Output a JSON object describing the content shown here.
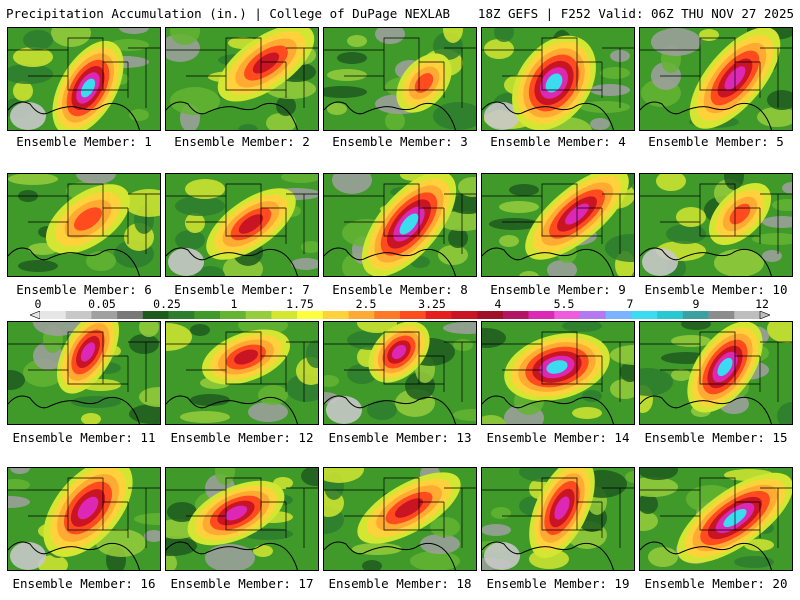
{
  "header": {
    "left": "Precipitation Accumulation (in.) | College of DuPage NEXLAB",
    "right": "18Z GEFS | F252 Valid: 06Z THU NOV 27 2025"
  },
  "colorbar": {
    "tick_labels": [
      "0",
      "0.05",
      "0.25",
      "1",
      "1.75",
      "2.5",
      "3.25",
      "4",
      "5.5",
      "7",
      "9",
      "12"
    ],
    "colors": [
      "#e6e6e6",
      "#c8c8c8",
      "#a0a0a0",
      "#787878",
      "#1e5a1e",
      "#2e7d2e",
      "#3f9a2a",
      "#64b432",
      "#96cd3c",
      "#d2e632",
      "#ffff3c",
      "#ffd23c",
      "#ffaa32",
      "#ff7828",
      "#ff4b1e",
      "#e61e1e",
      "#c81423",
      "#a00f28",
      "#b41464",
      "#dc28b4",
      "#f05adc",
      "#b478f0",
      "#78b4ff",
      "#3cdcf0",
      "#28c8d2",
      "#3ca0a0",
      "#8c8c8c",
      "#bebebe"
    ]
  },
  "members": [
    {
      "label": "Ensemble Member: 1"
    },
    {
      "label": "Ensemble Member: 2"
    },
    {
      "label": "Ensemble Member: 3"
    },
    {
      "label": "Ensemble Member: 4"
    },
    {
      "label": "Ensemble Member: 5"
    },
    {
      "label": "Ensemble Member: 6"
    },
    {
      "label": "Ensemble Member: 7"
    },
    {
      "label": "Ensemble Member: 8"
    },
    {
      "label": "Ensemble Member: 9"
    },
    {
      "label": "Ensemble Member: 10"
    },
    {
      "label": "Ensemble Member: 11"
    },
    {
      "label": "Ensemble Member: 12"
    },
    {
      "label": "Ensemble Member: 13"
    },
    {
      "label": "Ensemble Member: 14"
    },
    {
      "label": "Ensemble Member: 15"
    },
    {
      "label": "Ensemble Member: 16"
    },
    {
      "label": "Ensemble Member: 17"
    },
    {
      "label": "Ensemble Member: 18"
    },
    {
      "label": "Ensemble Member: 19"
    },
    {
      "label": "Ensemble Member: 20"
    }
  ]
}
